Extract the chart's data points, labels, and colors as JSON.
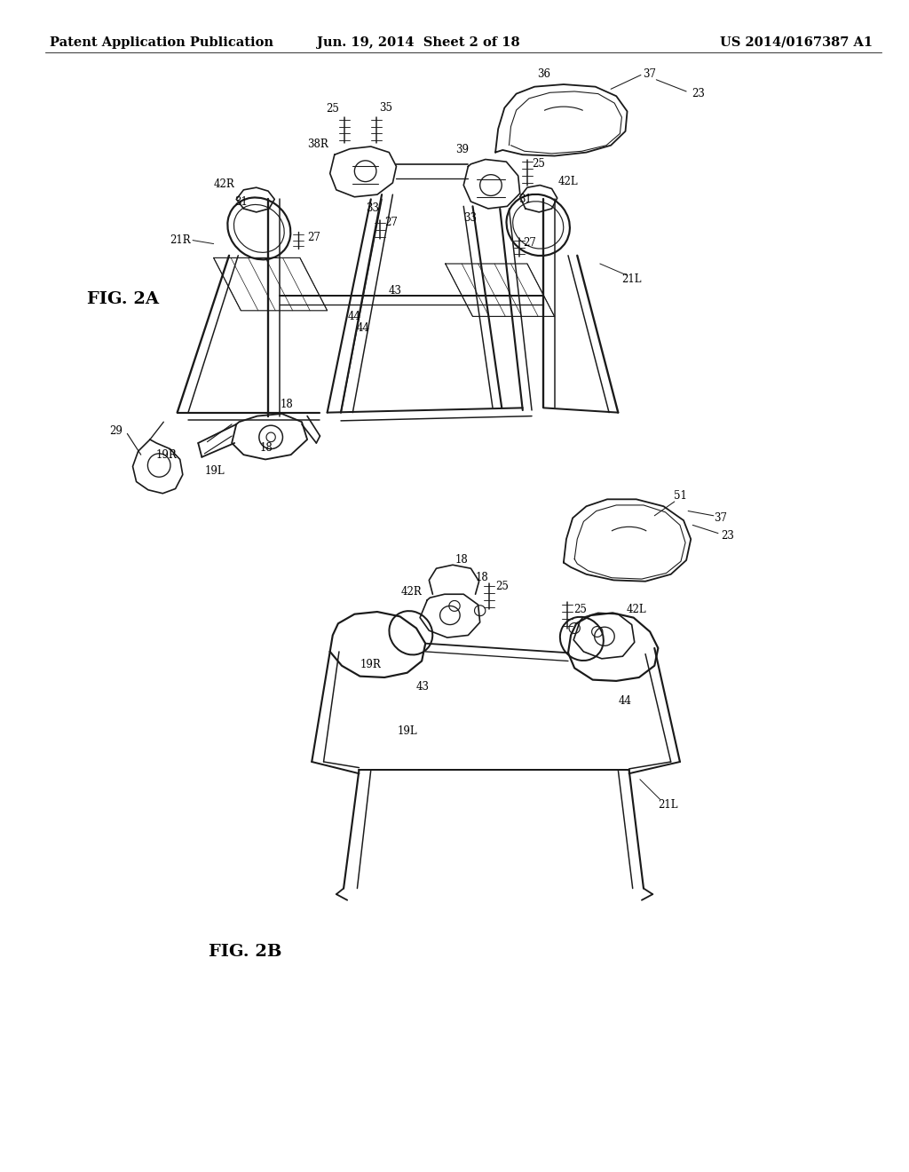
{
  "background_color": "#ffffff",
  "header_left": "Patent Application Publication",
  "header_center": "Jun. 19, 2014  Sheet 2 of 18",
  "header_right": "US 2014/0167387 A1",
  "header_fontsize": 10.5,
  "text_color": "#000000",
  "line_color": "#1a1a1a",
  "line_width": 1.2
}
